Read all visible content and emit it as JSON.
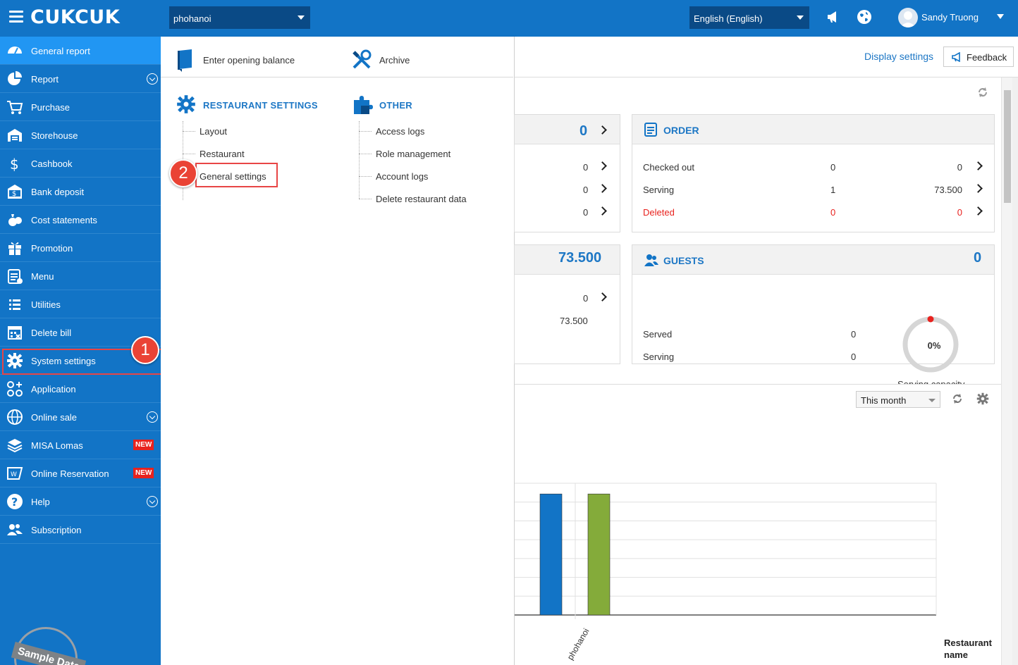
{
  "app": {
    "logo": "CUKCUK",
    "branch": "phohanoi",
    "language": "English (English)",
    "user": "Sandy Truong"
  },
  "sidebar": {
    "items": [
      {
        "label": "General report",
        "icon": "dashboard-icon"
      },
      {
        "label": "Report",
        "icon": "pie-chart-icon"
      },
      {
        "label": "Purchase",
        "icon": "cart-icon"
      },
      {
        "label": "Storehouse",
        "icon": "storehouse-icon"
      },
      {
        "label": "Cashbook",
        "icon": "dollar-icon"
      },
      {
        "label": "Bank deposit",
        "icon": "bank-icon"
      },
      {
        "label": "Cost statements",
        "icon": "money-bag-icon"
      },
      {
        "label": "Promotion",
        "icon": "gift-icon"
      },
      {
        "label": "Menu",
        "icon": "menu-icon"
      },
      {
        "label": "Utilities",
        "icon": "list-icon"
      },
      {
        "label": "Delete bill",
        "icon": "calendar-icon"
      },
      {
        "label": "System settings",
        "icon": "gear-icon"
      },
      {
        "label": "Application",
        "icon": "apps-icon"
      },
      {
        "label": "Online sale",
        "icon": "globe-icon"
      },
      {
        "label": "MISA Lomas",
        "icon": "layers-icon",
        "badge": "NEW"
      },
      {
        "label": "Online Reservation",
        "icon": "reservation-icon",
        "badge": "NEW"
      },
      {
        "label": "Help",
        "icon": "help-icon"
      },
      {
        "label": "Subscription",
        "icon": "users-icon"
      }
    ],
    "stamp": "Sample Data"
  },
  "annotations": {
    "step1": "1",
    "step2": "2"
  },
  "panel": {
    "top": {
      "opening_balance": "Enter opening balance",
      "archive": "Archive"
    },
    "restaurant_settings": {
      "title": "RESTAURANT SETTINGS",
      "items": [
        "Layout",
        "Restaurant",
        "General settings"
      ]
    },
    "other": {
      "title": "OTHER",
      "items": [
        "Access logs",
        "Role management",
        "Account logs",
        "Delete restaurant data"
      ]
    }
  },
  "main": {
    "display_settings": "Display settings",
    "feedback": "Feedback",
    "left_card_top": {
      "total": "0",
      "values": [
        "0",
        "0",
        "0"
      ]
    },
    "left_card_bottom": {
      "total": "73.500",
      "values": [
        "0",
        "73.500"
      ]
    },
    "order": {
      "title": "ORDER",
      "rows": [
        {
          "label": "Checked out",
          "count": "0",
          "amount": "0"
        },
        {
          "label": "Serving",
          "count": "1",
          "amount": "73.500"
        },
        {
          "label": "Deleted",
          "count": "0",
          "amount": "0"
        }
      ]
    },
    "guests": {
      "title": "GUESTS",
      "total": "0",
      "rows": [
        {
          "label": "Served",
          "value": "0"
        },
        {
          "label": "Serving",
          "value": "0"
        }
      ],
      "capacity_percent": "0%",
      "capacity_label": "Serving capacity"
    },
    "chart_filter": "This month"
  },
  "chart_data": {
    "type": "bar",
    "categories": [
      "phohanoi"
    ],
    "series": [
      {
        "values": [
          73.5
        ],
        "color": "#1274c6"
      },
      {
        "values": [
          73.5
        ],
        "color": "#84ab3a"
      }
    ],
    "xlabel": "Restaurant name",
    "ylim": [
      0,
      80
    ]
  },
  "colors": {
    "primary": "#1274c6",
    "accent": "#1d77c5",
    "danger": "#e8221e",
    "green": "#84ab3a"
  }
}
